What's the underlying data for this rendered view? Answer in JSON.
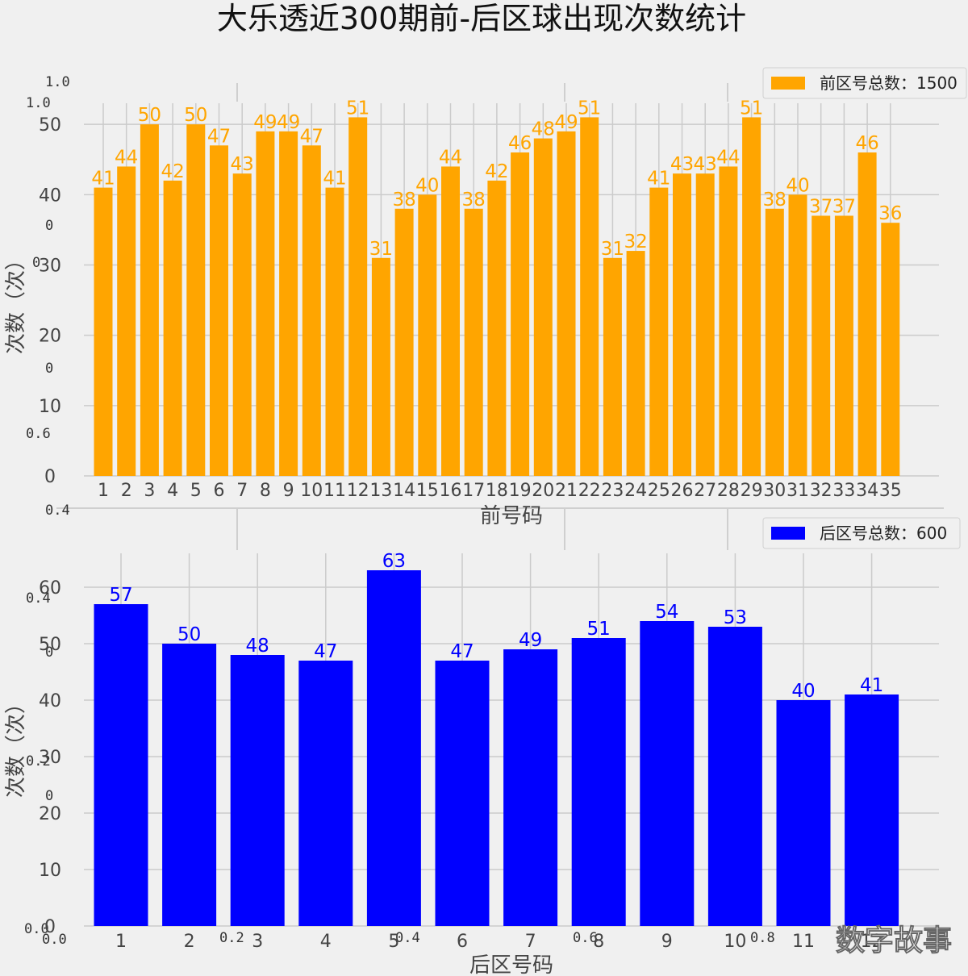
{
  "title": "大乐透近300期前-后区球出现次数统计",
  "watermark": "数字故事",
  "chart_data": [
    {
      "type": "bar",
      "xlabel": "前号码",
      "ylabel": "次数（次）",
      "ylim": [
        0,
        53
      ],
      "yticks": [
        0,
        10,
        20,
        30,
        40,
        50
      ],
      "grid": true,
      "legend": {
        "label": "前区号总数：1500",
        "position": "top-right"
      },
      "color": "#ffa500",
      "categories": [
        "1",
        "2",
        "3",
        "4",
        "5",
        "6",
        "7",
        "8",
        "9",
        "10",
        "11",
        "12",
        "13",
        "14",
        "15",
        "16",
        "17",
        "18",
        "19",
        "20",
        "21",
        "22",
        "23",
        "24",
        "25",
        "26",
        "27",
        "28",
        "29",
        "30",
        "31",
        "32",
        "33",
        "34",
        "35"
      ],
      "values": [
        41,
        44,
        50,
        42,
        50,
        47,
        43,
        49,
        49,
        47,
        41,
        51,
        31,
        38,
        40,
        44,
        38,
        42,
        46,
        48,
        49,
        51,
        31,
        32,
        41,
        43,
        43,
        44,
        51,
        38,
        40,
        37,
        37,
        46,
        36
      ]
    },
    {
      "type": "bar",
      "xlabel": "后区号码",
      "ylabel": "次数（次）",
      "ylim": [
        0,
        66
      ],
      "yticks": [
        0,
        10,
        20,
        30,
        40,
        50,
        60
      ],
      "grid": true,
      "legend": {
        "label": "后区号总数：600",
        "position": "top-right"
      },
      "color": "#0000ff",
      "categories": [
        "1",
        "2",
        "3",
        "4",
        "5",
        "6",
        "7",
        "8",
        "9",
        "10",
        "11",
        "12"
      ],
      "values": [
        57,
        50,
        48,
        47,
        63,
        47,
        49,
        51,
        54,
        53,
        40,
        41
      ]
    }
  ],
  "ghost_ticks": [
    "1.0",
    "1.0",
    "0",
    "0",
    "0",
    "0.6",
    "0.4",
    "0.4",
    "0",
    "0.2",
    "0",
    "0.0",
    "0.0",
    "0.2",
    "0.4",
    "0.6",
    "0.8"
  ]
}
